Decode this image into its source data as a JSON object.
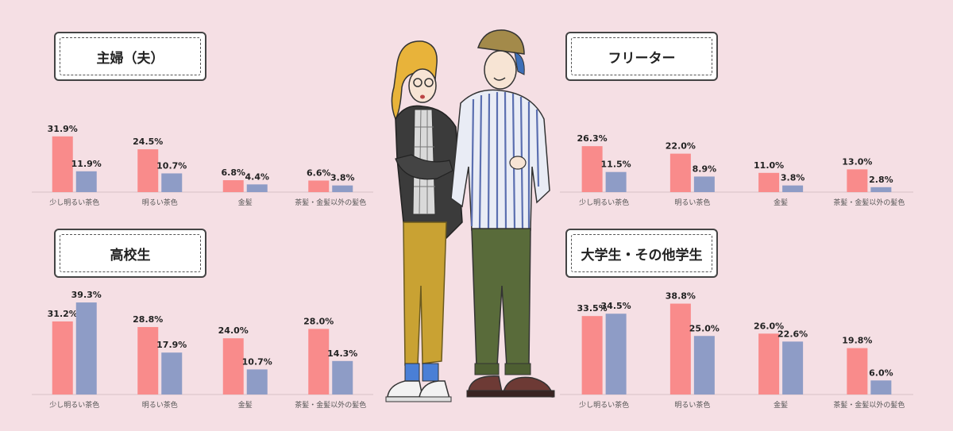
{
  "colors": {
    "bar_a": "#f98b8b",
    "bar_b": "#8e9cc6",
    "axis": "#e2cbd0",
    "label": "#555555"
  },
  "chart_data": [
    {
      "type": "bar",
      "title": "主婦（夫）",
      "categories": [
        "少し明るい茶色",
        "明るい茶色",
        "金髪",
        "茶髪・金髪以外の髪色"
      ],
      "series": [
        {
          "values": [
            31.9,
            24.5,
            6.8,
            6.6
          ]
        },
        {
          "values": [
            11.9,
            10.7,
            4.4,
            3.8
          ]
        }
      ],
      "value_labels": [
        [
          "31.9%",
          "24.5%",
          "6.8%",
          "6.6%"
        ],
        [
          "11.9%",
          "10.7%",
          "4.4%",
          "3.8%"
        ]
      ],
      "ylim": [
        0,
        40
      ]
    },
    {
      "type": "bar",
      "title": "フリーター",
      "categories": [
        "少し明るい茶色",
        "明るい茶色",
        "金髪",
        "茶髪・金髪以外の髪色"
      ],
      "series": [
        {
          "values": [
            26.3,
            22.0,
            11.0,
            13.0
          ]
        },
        {
          "values": [
            11.5,
            8.9,
            3.8,
            2.8
          ]
        }
      ],
      "value_labels": [
        [
          "26.3%",
          "22.0%",
          "11.0%",
          "13.0%"
        ],
        [
          "11.5%",
          "8.9%",
          "3.8%",
          "2.8%"
        ]
      ],
      "ylim": [
        0,
        40
      ]
    },
    {
      "type": "bar",
      "title": "高校生",
      "categories": [
        "少し明るい茶色",
        "明るい茶色",
        "金髪",
        "茶髪・金髪以外の髪色"
      ],
      "series": [
        {
          "values": [
            31.2,
            28.8,
            24.0,
            28.0
          ]
        },
        {
          "values": [
            39.3,
            17.9,
            10.7,
            14.3
          ]
        }
      ],
      "value_labels": [
        [
          "31.2%",
          "28.8%",
          "24.0%",
          "28.0%"
        ],
        [
          "39.3%",
          "17.9%",
          "10.7%",
          "14.3%"
        ]
      ],
      "ylim": [
        0,
        40
      ]
    },
    {
      "type": "bar",
      "title": "大学生・その他学生",
      "categories": [
        "少し明るい茶色",
        "明るい茶色",
        "金髪",
        "茶髪・金髪以外の髪色"
      ],
      "series": [
        {
          "values": [
            33.5,
            38.8,
            26.0,
            19.8
          ]
        },
        {
          "values": [
            34.5,
            25.0,
            22.6,
            6.0
          ]
        }
      ],
      "value_labels": [
        [
          "33.5%",
          "38.8%",
          "26.0%",
          "19.8%"
        ],
        [
          "34.5%",
          "25.0%",
          "22.6%",
          "6.0%"
        ]
      ],
      "ylim": [
        0,
        40
      ]
    }
  ]
}
